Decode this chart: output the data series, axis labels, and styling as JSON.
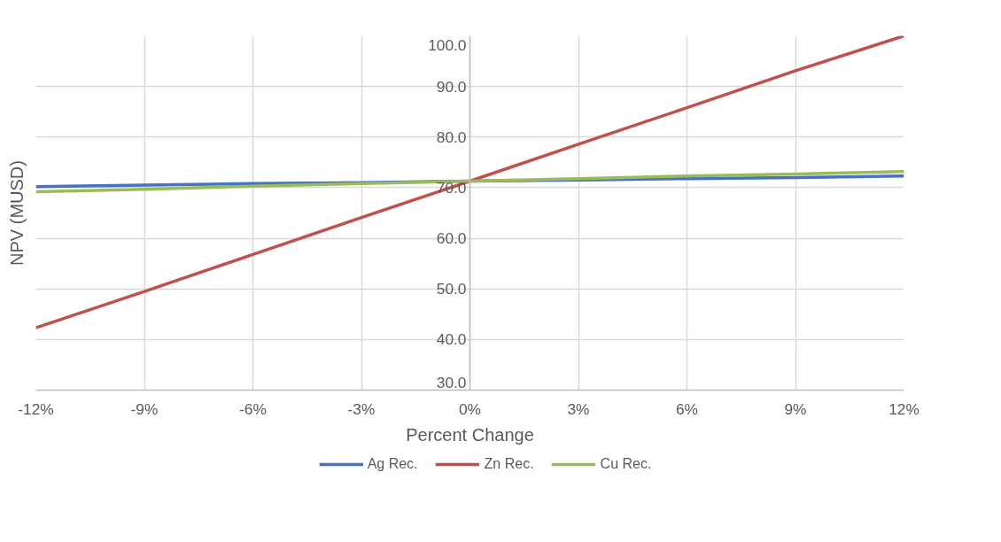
{
  "chart_data": {
    "type": "line",
    "xlabel": "Percent Change",
    "ylabel": "NPV (MUSD)",
    "x": [
      -12,
      -9,
      -6,
      -3,
      0,
      3,
      6,
      9,
      12
    ],
    "series": [
      {
        "name": "Ag Rec.",
        "color": "#4472c4",
        "values": [
          70.2,
          70.5,
          70.8,
          71.0,
          71.3,
          71.5,
          71.8,
          72.0,
          72.3
        ]
      },
      {
        "name": "Zn Rec.",
        "color": "#c0504d",
        "values": [
          42.3,
          49.5,
          56.8,
          64.1,
          71.3,
          78.6,
          85.8,
          93.1,
          100.0
        ]
      },
      {
        "name": "Cu Rec.",
        "color": "#9bbb59",
        "values": [
          69.2,
          69.7,
          70.3,
          70.8,
          71.3,
          71.8,
          72.3,
          72.7,
          73.2
        ]
      }
    ],
    "xlim": [
      -12,
      12
    ],
    "ylim": [
      30,
      100
    ],
    "xticks": [
      {
        "value": -12,
        "label": "-12%"
      },
      {
        "value": -9,
        "label": "-9%"
      },
      {
        "value": -6,
        "label": "-6%"
      },
      {
        "value": -3,
        "label": "-3%"
      },
      {
        "value": 0,
        "label": "0%"
      },
      {
        "value": 3,
        "label": "3%"
      },
      {
        "value": 6,
        "label": "6%"
      },
      {
        "value": 9,
        "label": "9%"
      },
      {
        "value": 12,
        "label": "12%"
      }
    ],
    "yticks": [
      {
        "value": 30,
        "label": "30.0"
      },
      {
        "value": 40,
        "label": "40.0"
      },
      {
        "value": 50,
        "label": "50.0"
      },
      {
        "value": 60,
        "label": "60.0"
      },
      {
        "value": 70,
        "label": "70.0"
      },
      {
        "value": 80,
        "label": "80.0"
      },
      {
        "value": 90,
        "label": "90.0"
      },
      {
        "value": 100,
        "label": "100.0"
      }
    ],
    "grid": true,
    "legend": "bottom",
    "marker": "none",
    "line_style": "solid"
  }
}
